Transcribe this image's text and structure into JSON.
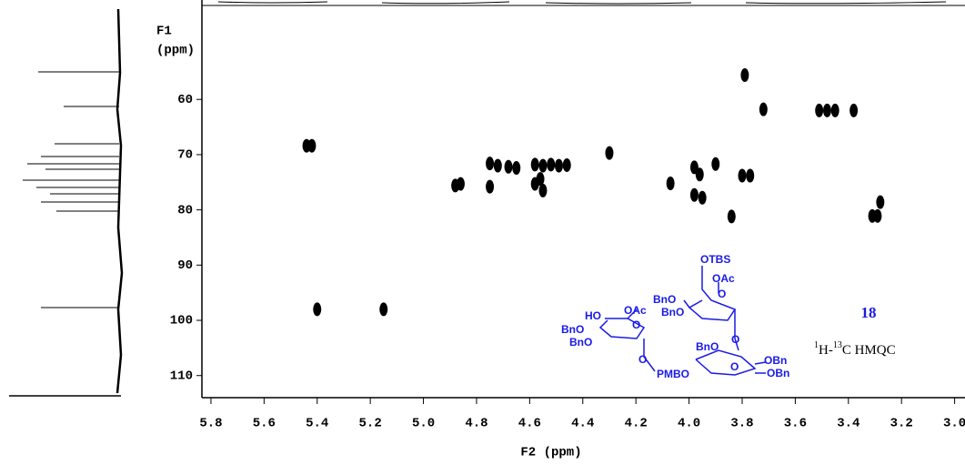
{
  "chart_data": {
    "type": "scatter",
    "y_title": [
      "F1",
      "(ppm)"
    ],
    "x_title": "F2 (ppm)",
    "compound_number": "18",
    "experiment": [
      "1",
      "H-",
      "13",
      "C HMQC"
    ],
    "structure_labels": [
      "OTBS",
      "OAc",
      "O",
      "BnO",
      "BnO",
      "HO",
      "OAc",
      "O",
      "BnO",
      "BnO",
      "O",
      "BnO",
      "O",
      "OBn",
      "OBn",
      "PMBO",
      "O"
    ],
    "xlim": [
      5.834,
      2.961
    ],
    "ylim": [
      114,
      42
    ],
    "xticks": [
      5.8,
      5.6,
      5.4,
      5.2,
      {
        "value": 5,
        "label": "5.0"
      },
      4.8,
      4.6,
      4.4,
      4.2,
      {
        "value": 4,
        "label": "4.0"
      },
      3.8,
      3.6,
      3.4,
      3.2,
      {
        "value": 3,
        "label": "3.0"
      }
    ],
    "yticks": [
      60,
      70,
      80,
      90,
      100,
      110
    ],
    "color": "#000000",
    "x": [
      3.79,
      3.72,
      3.51,
      3.48,
      3.45,
      3.38,
      5.44,
      5.42,
      4.3,
      4.75,
      4.72,
      4.68,
      4.65,
      4.58,
      4.55,
      4.52,
      4.49,
      4.46,
      4.88,
      4.86,
      4.75,
      4.58,
      4.55,
      4.56,
      4.07,
      3.98,
      3.96,
      3.98,
      3.95,
      3.9,
      3.8,
      3.77,
      3.84,
      3.28,
      3.29,
      3.31,
      5.4,
      5.15
    ],
    "values": [
      55.6,
      61.8,
      62,
      62,
      62,
      62,
      68.4,
      68.4,
      69.7,
      71.6,
      72.0,
      72.2,
      72.4,
      71.8,
      72.0,
      71.8,
      72.0,
      71.9,
      75.6,
      75.3,
      75.8,
      75.3,
      76.5,
      74.4,
      75.2,
      72.3,
      73.6,
      77.3,
      77.8,
      71.7,
      73.8,
      73.8,
      81.2,
      78.6,
      81.1,
      81.1,
      98.0,
      98.0
    ]
  }
}
